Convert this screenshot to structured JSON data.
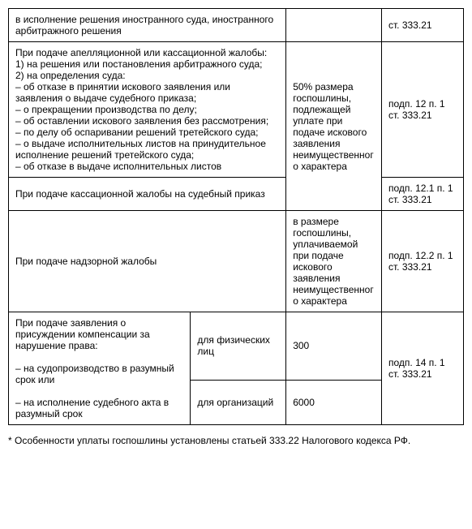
{
  "rows": {
    "r0": {
      "left": "в исполнение решения иностранного суда, иностранного арбитражного решения",
      "ref": "ст. 333.21"
    },
    "r1": {
      "left": "При подаче апелляционной или кассационной жалобы:\n1) на решения или постановления арбитражного суда;\n2) на определения суда:\n– об отказе в принятии искового заявления или заявления о выдаче судебного приказа;\n– о прекращении производства по делу;\n– об оставлении искового заявления без рассмотрения;\n– по делу об оспаривании решений третейского суда;\n– о выдаче исполнительных листов на принудительное исполнение решений третейского суда;\n– об отказе в выдаче исполнительных листов",
      "amt": "50% размера госпошлины, подлежащей уплате при подаче искового заявления неимущественного характера",
      "ref": "подп. 12 п. 1 ст. 333.21"
    },
    "r2": {
      "left": "При подаче кассационной жалобы на судебный приказ",
      "ref": "подп. 12.1 п. 1 ст. 333.21"
    },
    "r3": {
      "left": "При подаче надзорной жалобы",
      "amt": "в размере госпошлины, уплачиваемой при подаче искового заявления неимущественного характера",
      "ref": "подп. 12.2 п. 1 ст. 333.21"
    },
    "r4": {
      "left": "При подаче заявления о присуждении компенсации за нарушение права:\n\n– на судопроизводство в разумный срок или\n\n– на исполнение судебного акта в разумный срок",
      "mid_a": "для физических лиц",
      "amt_a": "300",
      "mid_b": "для организаций",
      "amt_b": "6000",
      "ref": "подп. 14 п. 1 ст. 333.21"
    }
  },
  "footnote": "* Особенности уплаты госпошлины установлены статьей 333.22 Налогового кодекса РФ."
}
